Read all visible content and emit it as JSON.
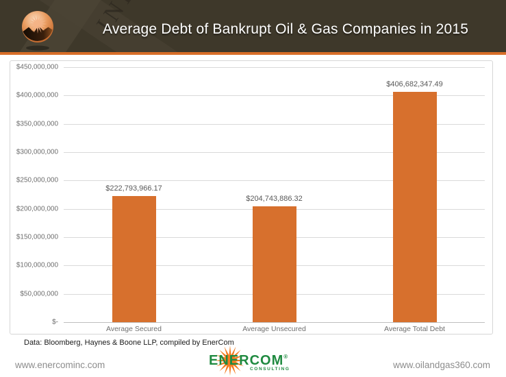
{
  "header": {
    "title": "Average Debt of Bankrupt Oil & Gas Companies in 2015",
    "watermark": "INDUSTRY"
  },
  "chart_data": {
    "type": "bar",
    "title": "Average Debt of Bankrupt Oil & Gas Companies in 2015",
    "categories": [
      "Average Secured",
      "Average Unsecured",
      "Average Total Debt"
    ],
    "values": [
      222793966.17,
      204743886.32,
      406682347.49
    ],
    "value_labels": [
      "$222,793,966.17",
      "$204,743,886.32",
      "$406,682,347.49"
    ],
    "xlabel": "",
    "ylabel": "",
    "ylim": [
      0,
      450000000
    ],
    "ytick_step": 50000000,
    "y_ticks": [
      "$450,000,000",
      "$400,000,000",
      "$350,000,000",
      "$300,000,000",
      "$250,000,000",
      "$200,000,000",
      "$150,000,000",
      "$100,000,000",
      "$50,000,000",
      "$-"
    ],
    "grid": true,
    "legend": false,
    "bar_color": "#D7702D"
  },
  "footer": {
    "source_note": "Data: Bloomberg, Haynes & Boone LLP, compiled by EnerCom",
    "left_link": "www.enercominc.com",
    "right_link": "www.oilandgas360.com",
    "logo": {
      "text": "ENERCOM",
      "registered": "®",
      "subtext": "CONSULTING"
    }
  },
  "colors": {
    "header_bg": "#3E382A",
    "accent_orange": "#D86E28",
    "bar_orange": "#D7702D",
    "gridline": "#D9D9D9",
    "logo_green": "#1F8A40",
    "logo_orange": "#F47B20"
  }
}
